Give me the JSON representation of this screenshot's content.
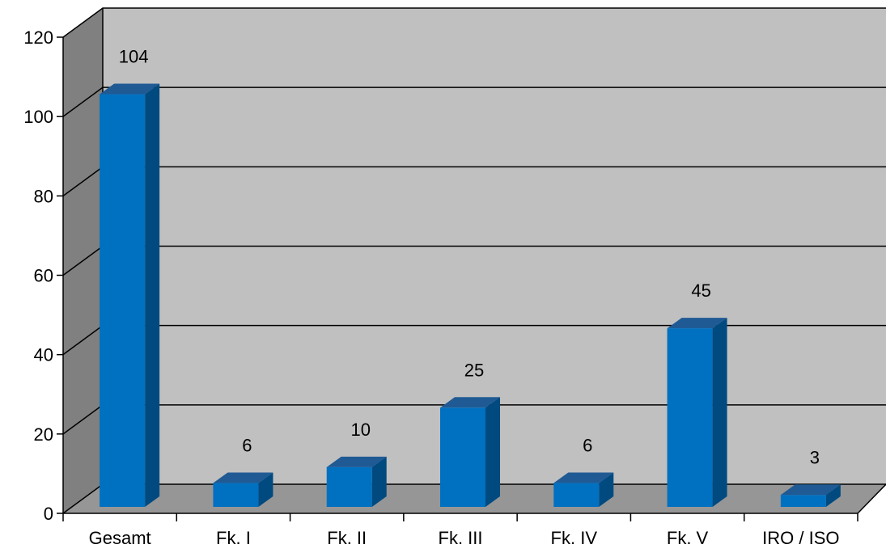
{
  "chart_data": {
    "type": "bar",
    "style": "3d-column",
    "categories": [
      "Gesamt",
      "Fk. I",
      "Fk. II",
      "Fk. III",
      "Fk. IV",
      "Fk. V",
      "IRO / ISO"
    ],
    "values": [
      104,
      6,
      10,
      25,
      6,
      45,
      3
    ],
    "data_labels": [
      "104",
      "6",
      "10",
      "25",
      "6",
      "45",
      "3"
    ],
    "ylim": [
      0,
      120
    ],
    "yticks": [
      0,
      20,
      40,
      60,
      80,
      100,
      120
    ],
    "ytick_labels": [
      "0",
      "20",
      "40",
      "60",
      "80",
      "100",
      "120"
    ],
    "grid": true,
    "legend": "none",
    "title": "",
    "xlabel": "",
    "ylabel": ""
  },
  "colors": {
    "bar_front": "#0070c0",
    "bar_side": "#004a80",
    "bar_top": "#1f5a94",
    "back_wall": "#c0c0c0",
    "side_wall": "#808080",
    "floor": "#969696",
    "gridline": "#000000"
  }
}
